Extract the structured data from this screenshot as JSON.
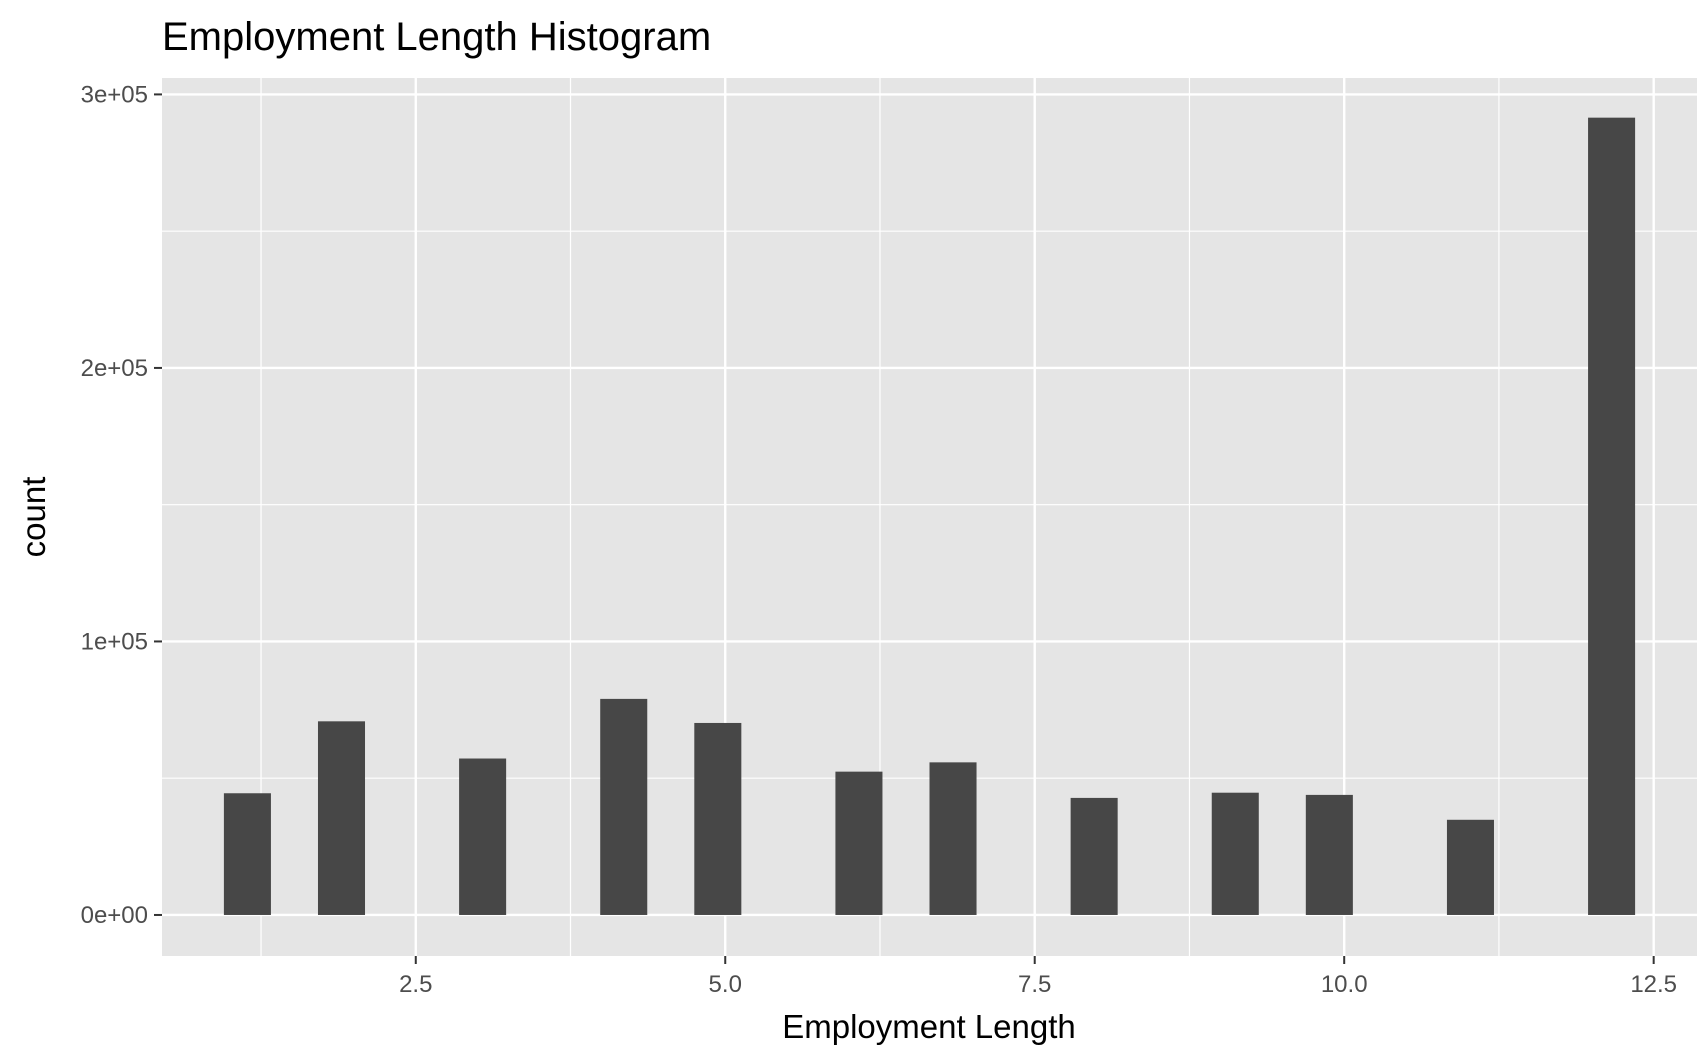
{
  "chart_data": {
    "type": "bar",
    "title": "Employment Length Histogram",
    "xlabel": "Employment Length",
    "ylabel": "count",
    "xlim": [
      0.45,
      12.85
    ],
    "ylim": [
      -15000,
      306000
    ],
    "x_ticks": [
      {
        "value": 2.5,
        "label": "2.5"
      },
      {
        "value": 5.0,
        "label": "5.0"
      },
      {
        "value": 7.5,
        "label": "7.5"
      },
      {
        "value": 10.0,
        "label": "10.0"
      },
      {
        "value": 12.5,
        "label": "12.5"
      }
    ],
    "y_ticks": [
      {
        "value": 0,
        "label": "0e+00"
      },
      {
        "value": 100000,
        "label": "1e+05"
      },
      {
        "value": 200000,
        "label": "2e+05"
      },
      {
        "value": 300000,
        "label": "3e+05"
      }
    ],
    "bin_width": 0.38,
    "bars": [
      {
        "x": 1.14,
        "count": 44500
      },
      {
        "x": 1.9,
        "count": 70800
      },
      {
        "x": 3.04,
        "count": 57200
      },
      {
        "x": 4.18,
        "count": 79000
      },
      {
        "x": 4.94,
        "count": 70200
      },
      {
        "x": 6.08,
        "count": 52400
      },
      {
        "x": 6.84,
        "count": 55800
      },
      {
        "x": 7.98,
        "count": 42800
      },
      {
        "x": 9.12,
        "count": 44700
      },
      {
        "x": 9.88,
        "count": 43900
      },
      {
        "x": 11.02,
        "count": 34800
      },
      {
        "x": 12.16,
        "count": 291500
      }
    ],
    "grid": true,
    "colors": {
      "panel": "#e5e5e5",
      "bar": "#474747",
      "grid": "#ffffff"
    }
  }
}
